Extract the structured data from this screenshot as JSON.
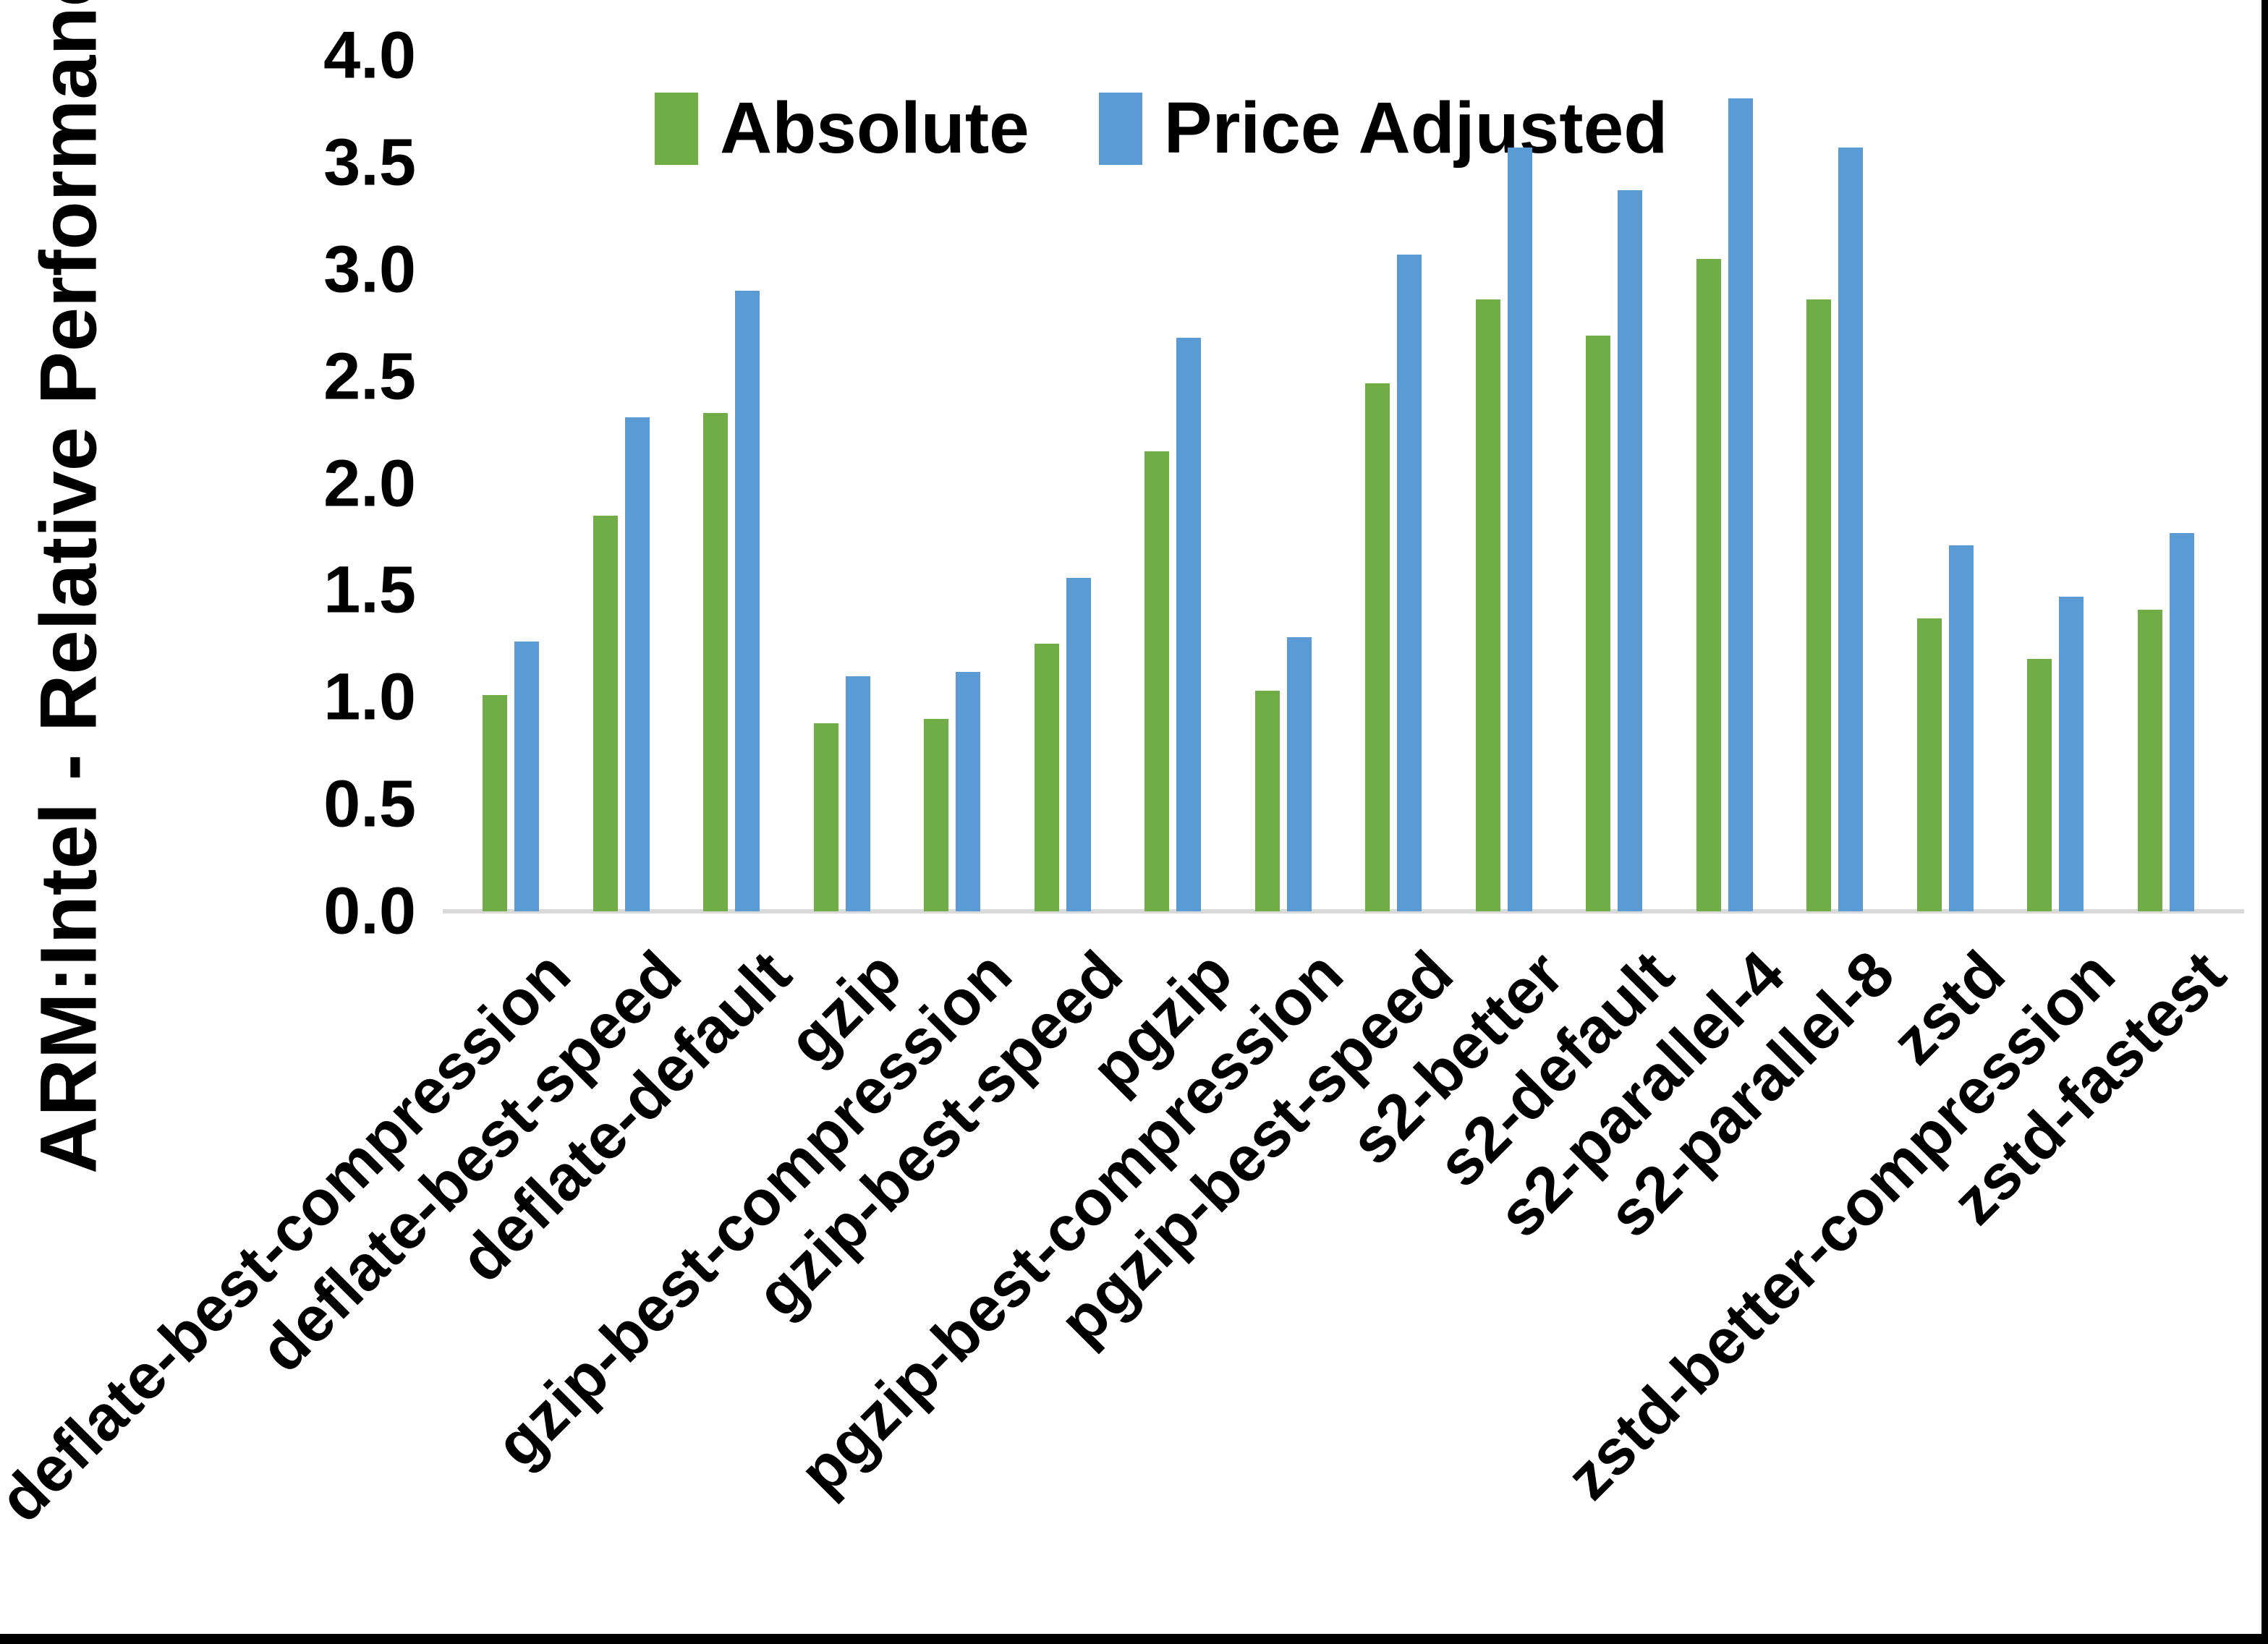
{
  "y_axis": {
    "title": "ARM:Intel - Relative Performance",
    "tick_labels": [
      "4.0",
      "3.5",
      "3.0",
      "2.5",
      "2.0",
      "1.5",
      "1.0",
      "0.5",
      "0.0"
    ]
  },
  "colors": {
    "absolute": "#70AD47",
    "price_adjusted": "#5B9BD5",
    "axis_line": "#D9D9D9",
    "frame": "#000000"
  },
  "chart_data": {
    "type": "bar",
    "title": "",
    "xlabel": "",
    "ylabel": "ARM:Intel - Relative Performance",
    "ylim": [
      0,
      4.0
    ],
    "ytick_step": 0.5,
    "grid": false,
    "legend_position": "top-center",
    "categories": [
      "deflate-best-compression",
      "deflate-best-speed",
      "deflate-default",
      "gzip",
      "gzip-best-compression",
      "gzip-best-speed",
      "pgzip",
      "pgzip-best-compression",
      "pgzip-best-speed",
      "s2-better",
      "s2-default",
      "s2-parallel-4",
      "s2-parallel-8",
      "zstd",
      "zstd-better-compression",
      "zstd-fastest"
    ],
    "series": [
      {
        "name": "Absolute",
        "color": "#70AD47",
        "values": [
          1.01,
          1.85,
          2.33,
          0.88,
          0.9,
          1.25,
          2.15,
          1.03,
          2.47,
          2.86,
          2.69,
          3.05,
          2.86,
          1.37,
          1.18,
          1.41
        ]
      },
      {
        "name": "Price Adjusted",
        "color": "#5B9BD5",
        "values": [
          1.26,
          2.31,
          2.9,
          1.1,
          1.12,
          1.56,
          2.68,
          1.28,
          3.07,
          3.57,
          3.37,
          3.8,
          3.57,
          1.71,
          1.47,
          1.77
        ]
      }
    ]
  }
}
